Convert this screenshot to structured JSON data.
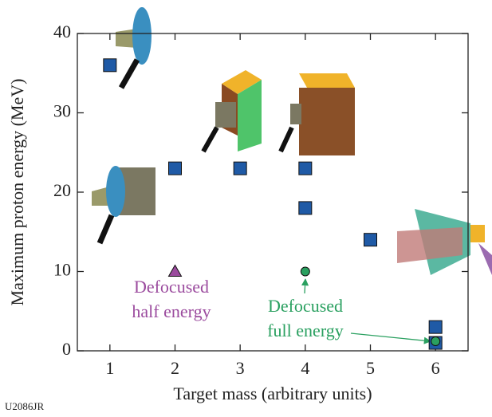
{
  "chart_data": {
    "type": "scatter",
    "x_label": "Target mass (arbitrary units)",
    "y_label": "Maximum proton energy (MeV)",
    "xlim": [
      0.5,
      6.5
    ],
    "xticks": [
      1,
      2,
      3,
      4,
      5,
      6
    ],
    "ylim": [
      0,
      40
    ],
    "yticks": [
      0,
      10,
      20,
      30,
      40
    ],
    "series": [
      {
        "marker": "square",
        "color": "#1f5aa6",
        "x": [
          1,
          2,
          3,
          4,
          4,
          5,
          6,
          6
        ],
        "values": [
          36,
          23,
          23,
          23,
          18,
          14,
          3,
          1
        ]
      },
      {
        "marker": "triangle",
        "color": "#9b4b9e",
        "x": [
          2
        ],
        "values": [
          10
        ]
      },
      {
        "marker": "circle",
        "color": "#2aa060",
        "x": [
          4,
          6
        ],
        "values": [
          10,
          1.2
        ]
      }
    ],
    "annotations": [
      {
        "lines": [
          "Defocused",
          "half energy"
        ],
        "color": "#9b4b9e"
      },
      {
        "lines": [
          "Defocused",
          "full energy"
        ],
        "color": "#2aa060"
      }
    ],
    "figure_id": "U2086JR"
  }
}
